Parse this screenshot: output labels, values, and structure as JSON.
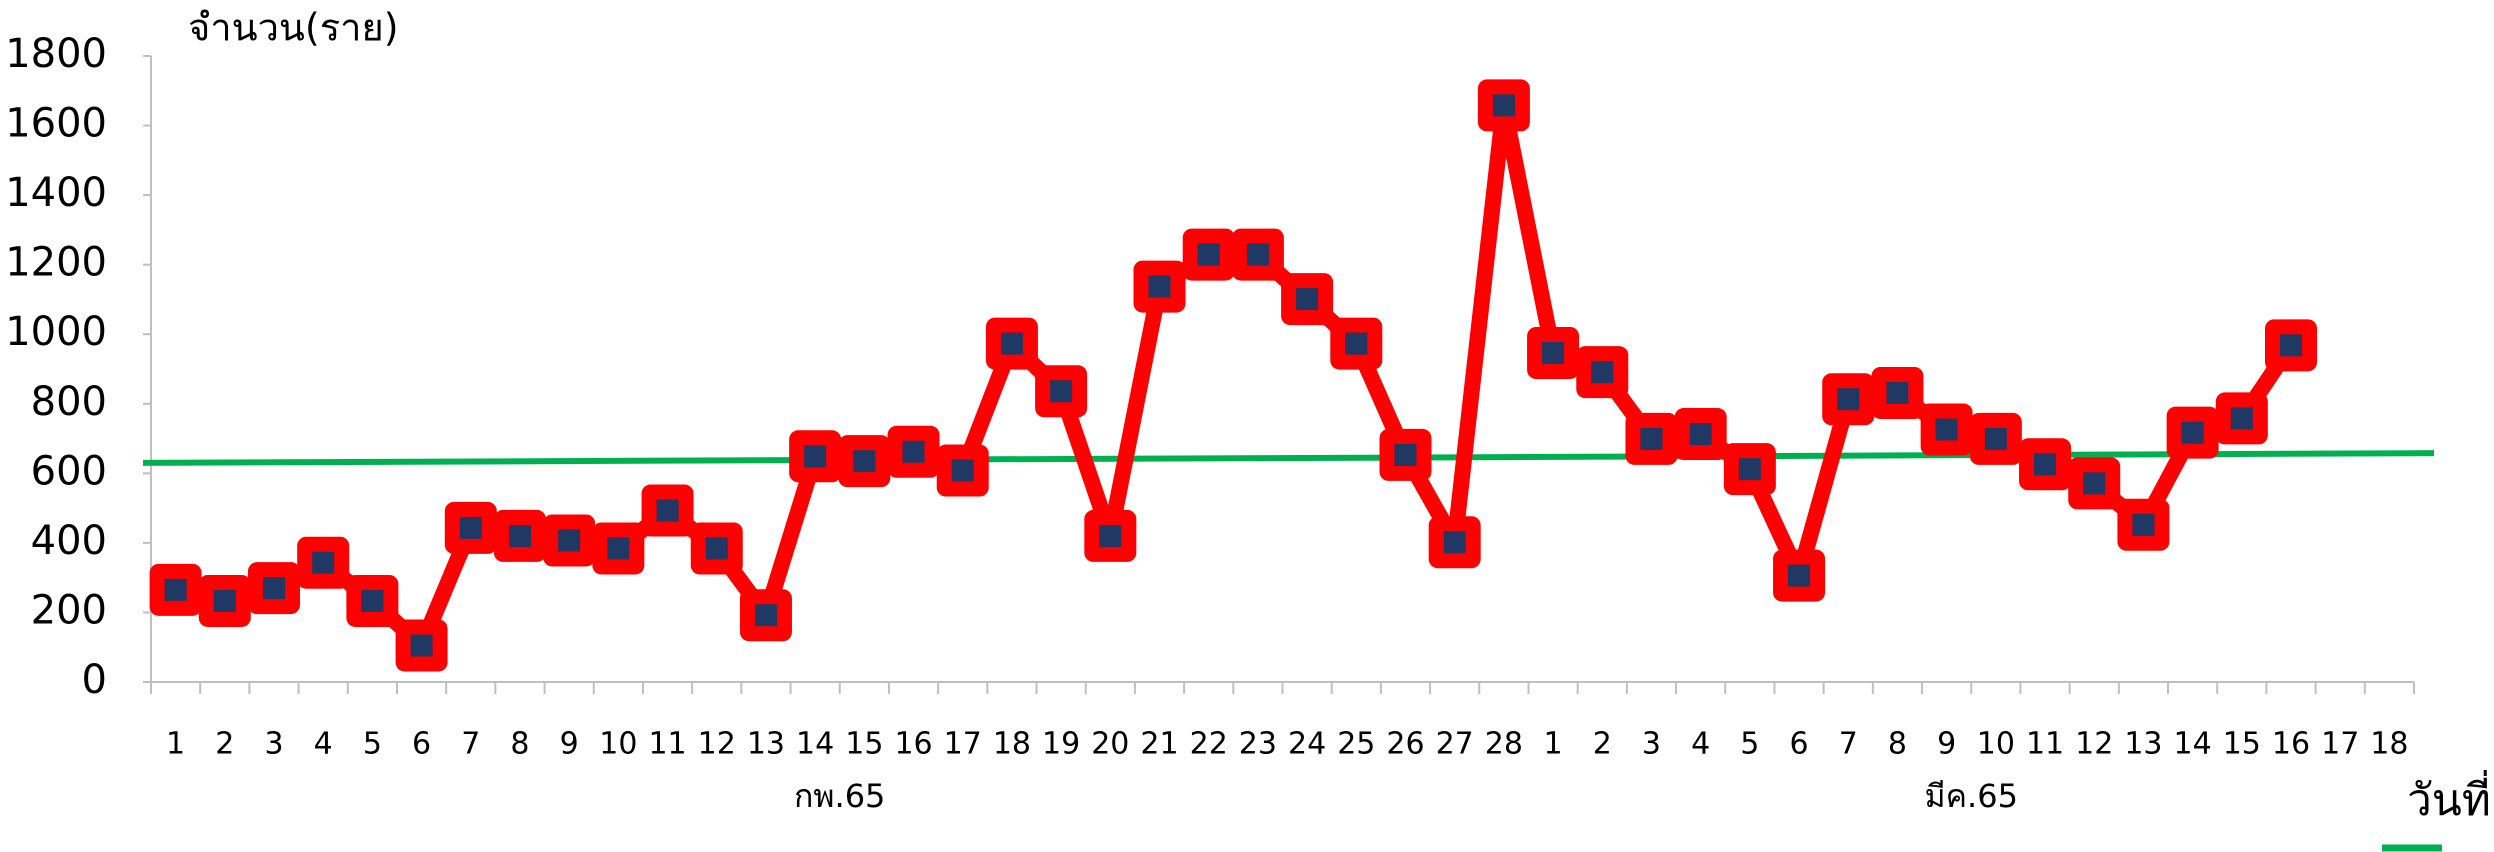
{
  "chart_data": {
    "type": "line",
    "y_label": "จำนวน(ราย)",
    "x_label": "วันที่",
    "categories": [
      "1",
      "2",
      "3",
      "4",
      "5",
      "6",
      "7",
      "8",
      "9",
      "10",
      "11",
      "12",
      "13",
      "14",
      "15",
      "16",
      "17",
      "18",
      "19",
      "20",
      "21",
      "22",
      "23",
      "24",
      "25",
      "26",
      "27",
      "28",
      "1",
      "2",
      "3",
      "4",
      "5",
      "6",
      "7",
      "8",
      "9",
      "10",
      "11",
      "12",
      "13",
      "14",
      "15",
      "16",
      "17",
      "18"
    ],
    "groups": [
      {
        "label": "กพ.65",
        "count": 28
      },
      {
        "label": "มีค.65",
        "count": 18
      }
    ],
    "series": [
      {
        "color": "#ff0000",
        "marker_color": "#1f3864",
        "values": [
          265,
          233,
          270,
          343,
          233,
          105,
          443,
          420,
          407,
          384,
          493,
          384,
          192,
          649,
          635,
          662,
          608,
          973,
          836,
          420,
          1137,
          1229,
          1229,
          1101,
          973,
          653,
          402,
          1658,
          946,
          891,
          699,
          713,
          612,
          306,
          813,
          831,
          726,
          699,
          626,
          571,
          452,
          717,
          758,
          968,
          null,
          null
        ]
      }
    ],
    "trendline": {
      "start": 630,
      "end": 658,
      "color": "#00b050"
    },
    "ylim": [
      0,
      1800
    ],
    "yticks": [
      0,
      200,
      400,
      600,
      800,
      1000,
      1200,
      1400,
      1600,
      1800
    ],
    "grid": false
  }
}
